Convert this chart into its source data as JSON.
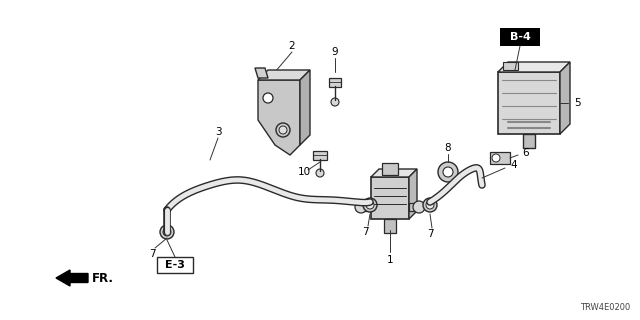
{
  "background_color": "#ffffff",
  "line_color": "#2a2a2a",
  "text_color": "#000000",
  "diagram_code": "TRW4E0200",
  "reference_label": "B-4",
  "direction_label": "FR.",
  "e3_label": "E-3",
  "figsize": [
    6.4,
    3.2
  ],
  "dpi": 100,
  "font_size": 7.5,
  "font_size_small": 6.0
}
